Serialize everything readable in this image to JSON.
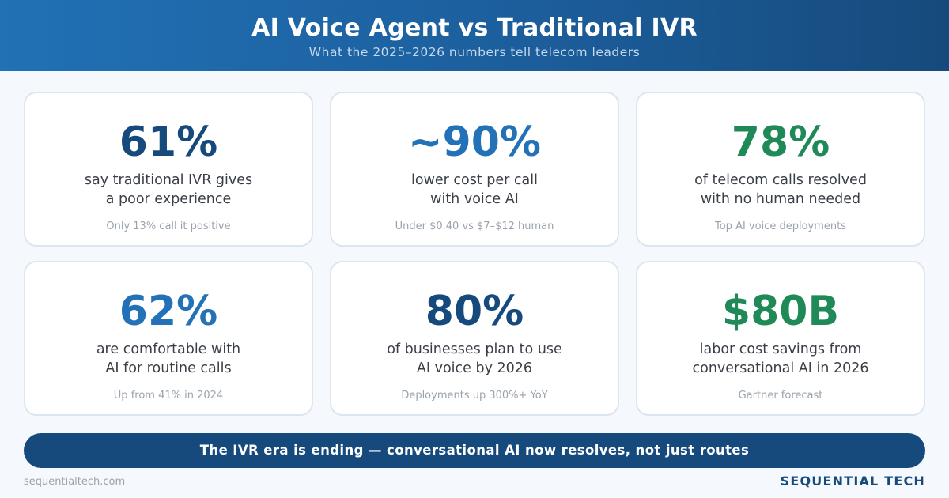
{
  "header": {
    "title": "AI Voice Agent vs Traditional IVR",
    "subtitle": "What the 2025–2026 numbers tell telecom leaders"
  },
  "stats": [
    {
      "value": "61%",
      "line1": "say traditional IVR gives",
      "line2": "a poor experience",
      "note": "Only 13% call it positive",
      "color": "#174a7c"
    },
    {
      "value": "~90%",
      "line1": "lower cost per call",
      "line2": "with voice AI",
      "note": "Under $0.40 vs $7–$12 human",
      "color": "#2371b7"
    },
    {
      "value": "78%",
      "line1": "of telecom calls resolved",
      "line2": "with no human needed",
      "note": "Top AI voice deployments",
      "color": "#1f8a57"
    },
    {
      "value": "62%",
      "line1": "are comfortable with",
      "line2": "AI for routine calls",
      "note": "Up from 41% in 2024",
      "color": "#2371b7"
    },
    {
      "value": "80%",
      "line1": "of businesses plan to use",
      "line2": "AI voice by 2026",
      "note": "Deployments up 300%+ YoY",
      "color": "#174a7c"
    },
    {
      "value": "$80B",
      "line1": "labor cost savings from",
      "line2": "conversational AI in 2026",
      "note": "Gartner forecast",
      "color": "#1f8a57"
    }
  ],
  "banner": {
    "text": "The IVR era is ending — conversational AI now resolves, not just routes"
  },
  "footer": {
    "url": "sequentialtech.com",
    "brand": "SEQUENTIAL TECH"
  }
}
